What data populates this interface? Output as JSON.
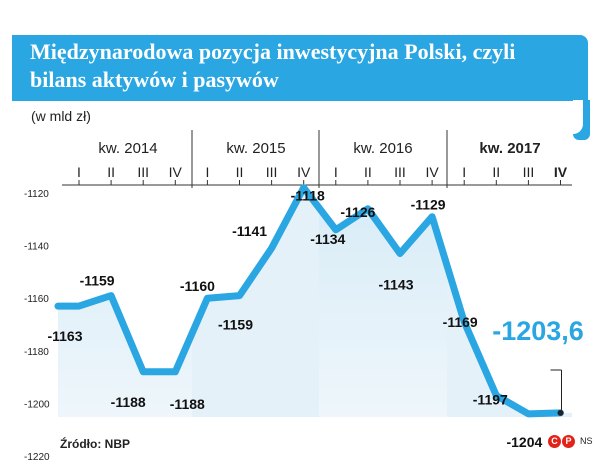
{
  "title": "Międzynarodowa pozycja inwestycyjna Polski, czyli bilans aktywów i pasywów",
  "units": "(w mld zł)",
  "source": "Źródło: NBP",
  "logo": {
    "c": "C",
    "p": "P",
    "ns": "NS"
  },
  "colors": {
    "accent": "#2aa6e3",
    "line": "#2aa6e3",
    "area_top": "#d8ecf7",
    "area_bottom": "#eef6fb",
    "label": "#111111"
  },
  "chart_data": {
    "type": "line",
    "title": "Międzynarodowa pozycja inwestycyjna Polski, czyli bilans aktywów i pasywów",
    "ylabel": "(w mld zł)",
    "ylim": [
      -1220,
      -1120
    ],
    "yticks": [
      "-1120",
      "-1140",
      "-1160",
      "-1180",
      "-1200",
      "-1220"
    ],
    "years": [
      "kw. 2014",
      "kw. 2015",
      "kw. 2016",
      "kw. 2017"
    ],
    "quarters": [
      "I",
      "II",
      "III",
      "IV",
      "I",
      "II",
      "III",
      "IV",
      "I",
      "II",
      "III",
      "IV",
      "I",
      "II",
      "III",
      "IV"
    ],
    "values": [
      -1163,
      -1159,
      -1188,
      -1188,
      -1160,
      -1159,
      -1141,
      -1118,
      -1134,
      -1126,
      -1143,
      -1129,
      -1169,
      -1197,
      -1204,
      -1203.6
    ],
    "labels": [
      "-1163",
      "-1159",
      "-1188",
      "-1188",
      "-1160",
      "-1159",
      "-1141",
      "-1118",
      "-1134",
      "-1126",
      "-1143",
      "-1129",
      "-1169",
      "-1197",
      "-1204",
      "-1203,6"
    ],
    "highlight_label": "-1203,6",
    "grid": false
  }
}
